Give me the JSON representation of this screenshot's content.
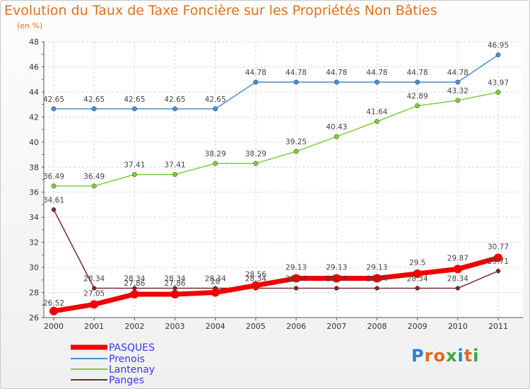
{
  "chart_data": {
    "type": "line",
    "title": "Evolution du Taux de Taxe Foncière sur les Propriétés Non Bâties",
    "subtitle": "(en %)",
    "xlabel": "",
    "ylabel": "",
    "ylim": [
      26,
      48
    ],
    "yticks": [
      26,
      28,
      30,
      32,
      34,
      36,
      38,
      40,
      42,
      44,
      46,
      48
    ],
    "grid": true,
    "legend_position": "bottom-left",
    "categories": [
      "2000",
      "2001",
      "2002",
      "2003",
      "2004",
      "2005",
      "2006",
      "2007",
      "2008",
      "2009",
      "2010",
      "2011"
    ],
    "series": [
      {
        "name": "PASQUES",
        "color": "#f00000",
        "values": [
          26.52,
          27.05,
          27.86,
          27.86,
          28.0,
          28.56,
          29.13,
          29.13,
          29.13,
          29.5,
          29.87,
          30.77
        ],
        "labels": [
          "26.52",
          "27.05",
          "27.86",
          "27.86",
          "28",
          "28.56",
          "29.13",
          "29.13",
          "29.13",
          "29.5",
          "29.87",
          "30.77"
        ]
      },
      {
        "name": "Prenois",
        "color": "#4a8ed0",
        "values": [
          42.65,
          42.65,
          42.65,
          42.65,
          42.65,
          44.78,
          44.78,
          44.78,
          44.78,
          44.78,
          44.78,
          46.95
        ],
        "labels": [
          "42.65",
          "42.65",
          "42.65",
          "42.65",
          "42.65",
          "44.78",
          "44.78",
          "44.78",
          "44.78",
          "44.78",
          "44.78",
          "46.95"
        ]
      },
      {
        "name": "Lantenay",
        "color": "#7ccd3c",
        "values": [
          36.49,
          36.49,
          37.41,
          37.41,
          38.29,
          38.29,
          39.25,
          40.43,
          41.64,
          42.89,
          43.32,
          43.97
        ],
        "labels": [
          "36.49",
          "36.49",
          "37.41",
          "37.41",
          "38.29",
          "38.29",
          "39.25",
          "40.43",
          "41.64",
          "42.89",
          "43.32",
          "43.97"
        ]
      },
      {
        "name": "Panges",
        "color": "#7a2a2a",
        "values": [
          34.61,
          28.34,
          28.34,
          28.34,
          28.34,
          28.34,
          28.34,
          28.34,
          28.34,
          28.34,
          28.34,
          29.71
        ],
        "labels": [
          "34.61",
          "28.34",
          "28.34",
          "28.34",
          "28.34",
          "28.34",
          "28.34",
          "28.34",
          "28.34",
          "28.34",
          "28.34",
          "29.71"
        ]
      }
    ]
  },
  "brand": {
    "text": "Proxiti",
    "letters": [
      {
        "ch": "P",
        "color": "#2a7fd4"
      },
      {
        "ch": "r",
        "color": "#e06a1a"
      },
      {
        "ch": "o",
        "color": "#e06a1a"
      },
      {
        "ch": "x",
        "color": "#3aa83a"
      },
      {
        "ch": "i",
        "color": "#2a7fd4"
      },
      {
        "ch": "t",
        "color": "#e06a1a"
      },
      {
        "ch": "i",
        "color": "#3aa83a"
      }
    ]
  }
}
